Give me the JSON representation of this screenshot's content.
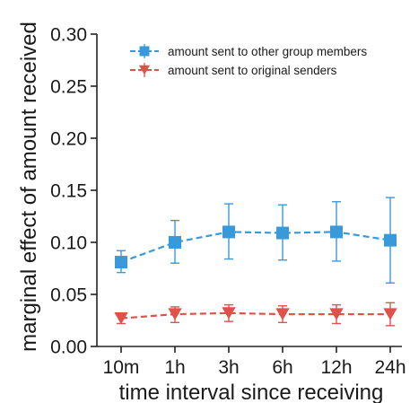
{
  "chart_data": {
    "type": "line",
    "title": "",
    "xlabel": "time interval since receiving",
    "ylabel": "marginal effect of amount received",
    "categories": [
      "10m",
      "1h",
      "3h",
      "6h",
      "12h",
      "24h"
    ],
    "ylim": [
      0,
      0.3
    ],
    "yticks": [
      "0.00",
      "0.05",
      "0.10",
      "0.15",
      "0.20",
      "0.25",
      "0.30"
    ],
    "grid": false,
    "legend_position": "top-right",
    "series": [
      {
        "name": "amount sent to other group members",
        "color": "#3a9ad9",
        "marker": "square",
        "values": [
          0.081,
          0.1,
          0.11,
          0.109,
          0.11,
          0.102
        ],
        "err_low": [
          0.071,
          0.08,
          0.084,
          0.083,
          0.082,
          0.061
        ],
        "err_high": [
          0.092,
          0.121,
          0.137,
          0.136,
          0.139,
          0.143
        ]
      },
      {
        "name": "amount sent to original senders",
        "color": "#e0514a",
        "marker": "triangle-down",
        "values": [
          0.027,
          0.031,
          0.032,
          0.031,
          0.031,
          0.031
        ],
        "err_low": [
          0.022,
          0.023,
          0.024,
          0.023,
          0.022,
          0.02
        ],
        "err_high": [
          0.032,
          0.038,
          0.04,
          0.039,
          0.04,
          0.042
        ]
      }
    ]
  }
}
